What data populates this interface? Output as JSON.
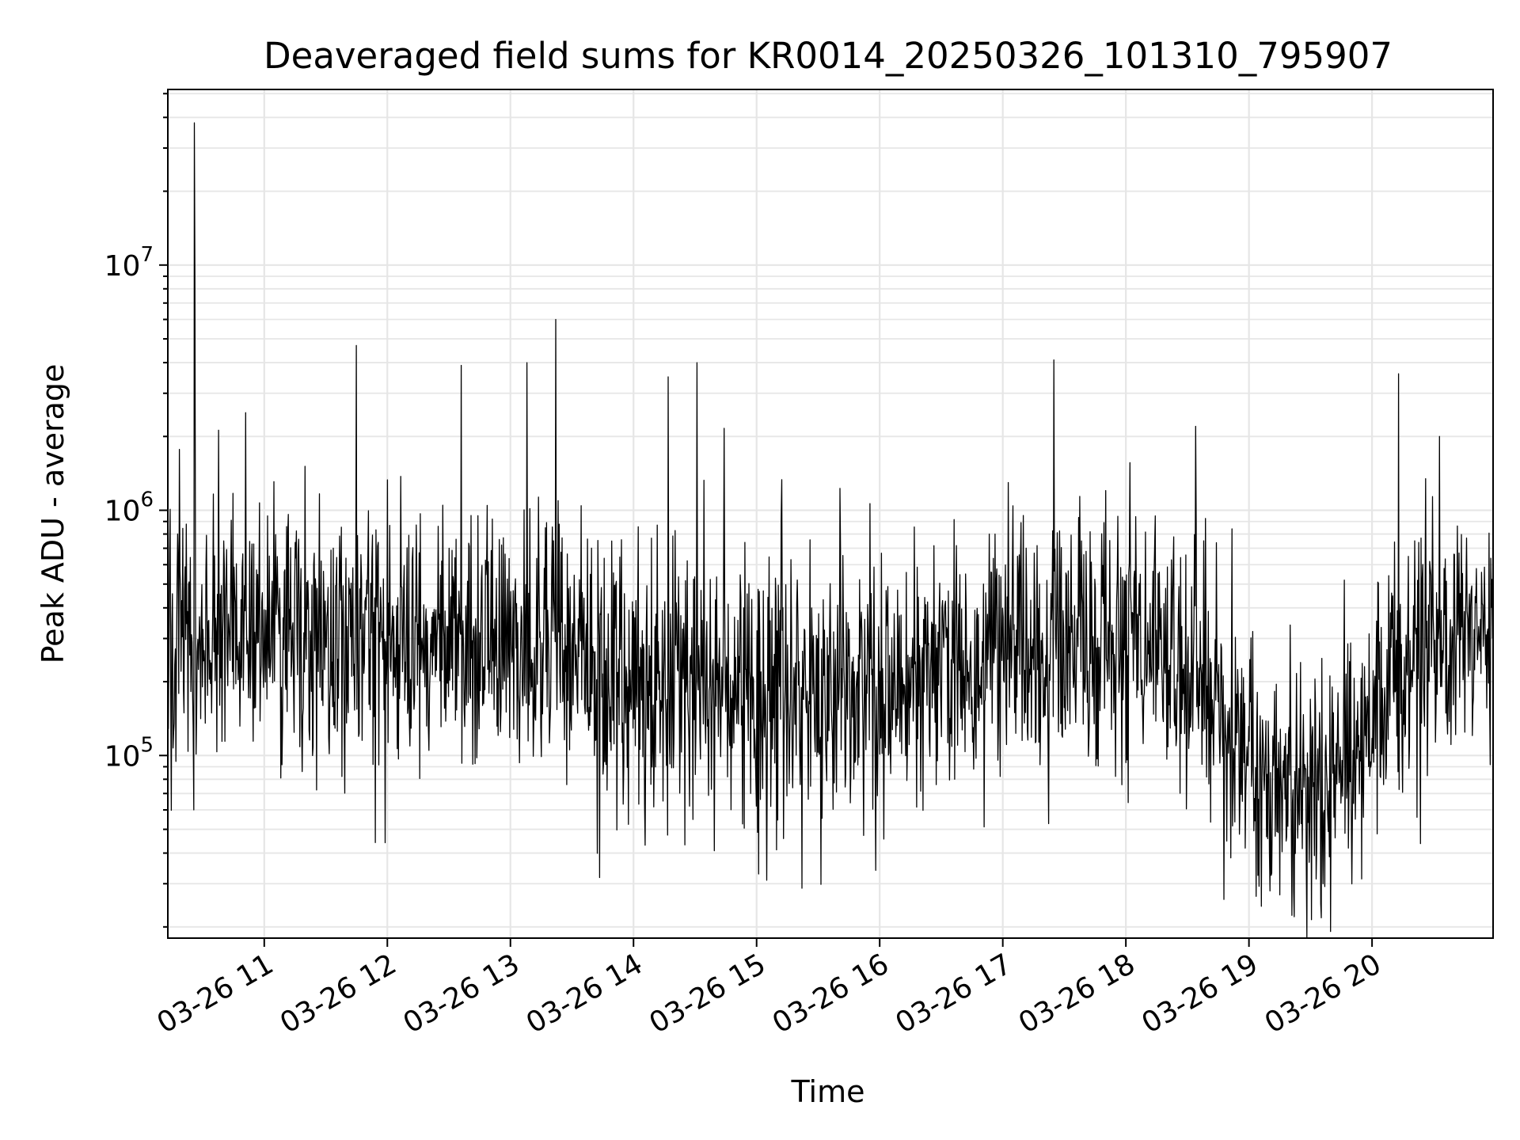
{
  "chart_data": {
    "type": "line",
    "title": "Deaveraged field sums for KR0014_20250326_101310_795907",
    "xlabel": "Time",
    "ylabel": "Peak ADU - average",
    "yscale": "log",
    "xlim": [
      "2025-03-26T10:13",
      "2025-03-26T20:59"
    ],
    "ylim": [
      18000,
      52000000
    ],
    "grid": true,
    "line_color": "#000000",
    "grid_color": "#e6e6e6",
    "x_ticks": [
      "03-26 11",
      "03-26 12",
      "03-26 13",
      "03-26 14",
      "03-26 15",
      "03-26 16",
      "03-26 17",
      "03-26 18",
      "03-26 19",
      "03-26 20"
    ],
    "x_tick_times": [
      "2025-03-26T11:00",
      "2025-03-26T12:00",
      "2025-03-26T13:00",
      "2025-03-26T14:00",
      "2025-03-26T15:00",
      "2025-03-26T16:00",
      "2025-03-26T17:00",
      "2025-03-26T18:00",
      "2025-03-26T19:00",
      "2025-03-26T20:00"
    ],
    "y_ticks": [
      {
        "base": "10",
        "exp": "5",
        "value": 100000
      },
      {
        "base": "10",
        "exp": "6",
        "value": 1000000
      },
      {
        "base": "10",
        "exp": "7",
        "value": 10000000
      }
    ],
    "series_profile": {
      "x": [
        "2025-03-26T10:13",
        "2025-03-26T11:00",
        "2025-03-26T12:00",
        "2025-03-26T13:00",
        "2025-03-26T14:00",
        "2025-03-26T15:00",
        "2025-03-26T16:00",
        "2025-03-26T17:00",
        "2025-03-26T18:00",
        "2025-03-26T18:30",
        "2025-03-26T19:00",
        "2025-03-26T19:30",
        "2025-03-26T20:00",
        "2025-03-26T20:30",
        "2025-03-26T20:59"
      ],
      "y": [
        300000,
        330000,
        280000,
        300000,
        220000,
        180000,
        210000,
        260000,
        300000,
        230000,
        95000,
        65000,
        150000,
        280000,
        380000
      ]
    },
    "notable_points": [
      {
        "x": "2025-03-26T10:26",
        "y": 38000000
      },
      {
        "x": "2025-03-26T10:26",
        "y": 9000000
      },
      {
        "x": "2025-03-26T10:51",
        "y": 2500000
      },
      {
        "x": "2025-03-26T11:45",
        "y": 4700000
      },
      {
        "x": "2025-03-26T12:36",
        "y": 3900000
      },
      {
        "x": "2025-03-26T13:22",
        "y": 6000000
      },
      {
        "x": "2025-03-26T13:08",
        "y": 4000000
      },
      {
        "x": "2025-03-26T14:17",
        "y": 3500000
      },
      {
        "x": "2025-03-26T14:31",
        "y": 4000000
      },
      {
        "x": "2025-03-26T17:25",
        "y": 4100000
      },
      {
        "x": "2025-03-26T18:34",
        "y": 2200000
      },
      {
        "x": "2025-03-26T20:13",
        "y": 3600000
      },
      {
        "x": "2025-03-26T20:33",
        "y": 2000000
      },
      {
        "x": "2025-03-26T15:05",
        "y": 31000
      },
      {
        "x": "2025-03-26T15:58",
        "y": 34000
      },
      {
        "x": "2025-03-26T19:22",
        "y": 22000
      },
      {
        "x": "2025-03-26T19:36",
        "y": 30000
      }
    ]
  }
}
